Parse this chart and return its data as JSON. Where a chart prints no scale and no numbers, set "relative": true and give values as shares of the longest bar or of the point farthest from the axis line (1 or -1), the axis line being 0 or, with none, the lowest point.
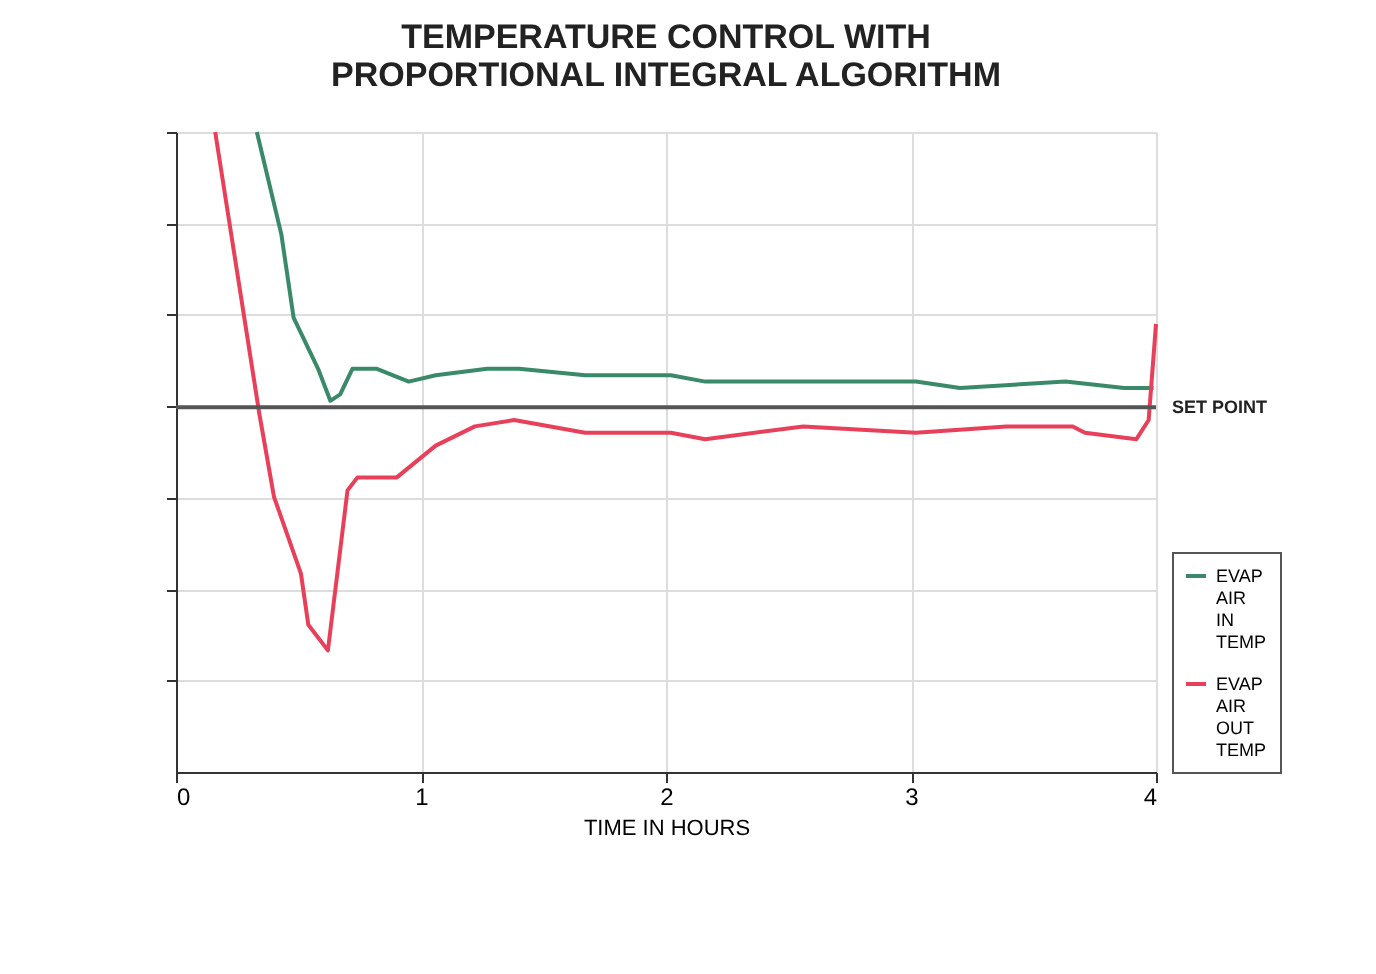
{
  "chart_data": {
    "type": "line",
    "title": "TEMPERATURE CONTROL WITH\nPROPORTIONAL INTEGRAL ALGORITHM",
    "xlabel": "TIME IN HOURS",
    "relative": true,
    "xlim": [
      0,
      4
    ],
    "xticks": [
      0,
      1,
      2,
      3,
      4
    ],
    "grid": true,
    "legend": "bottom right",
    "marker": "none",
    "line_style": "solid",
    "ref_lines": [
      {
        "axis": "y",
        "value": 0.57,
        "label": "SET POINT",
        "color": "#555555"
      }
    ],
    "series": [
      {
        "name": "EVAP AIR IN TEMP",
        "color": "#3a8a6a",
        "x": [
          0.33,
          0.43,
          0.48,
          0.58,
          0.63,
          0.67,
          0.72,
          0.82,
          0.95,
          1.06,
          1.27,
          1.4,
          1.67,
          2.02,
          2.16,
          2.56,
          3.02,
          3.2,
          3.63,
          3.87,
          3.99
        ],
        "values": [
          1,
          0.84,
          0.71,
          0.63,
          0.58,
          0.59,
          0.63,
          0.63,
          0.61,
          0.62,
          0.63,
          0.63,
          0.62,
          0.62,
          0.61,
          0.61,
          0.61,
          0.6,
          0.61,
          0.6,
          0.6
        ]
      },
      {
        "name": "EVAP AIR OUT TEMP",
        "color": "#e8405a",
        "x": [
          0.16,
          0.34,
          0.4,
          0.51,
          0.54,
          0.62,
          0.7,
          0.74,
          0.9,
          1.06,
          1.22,
          1.38,
          1.67,
          2.02,
          2.16,
          2.56,
          3.02,
          3.39,
          3.66,
          3.71,
          3.92,
          3.97,
          4.0
        ],
        "values": [
          1,
          0.56,
          0.43,
          0.31,
          0.23,
          0.19,
          0.44,
          0.46,
          0.46,
          0.51,
          0.54,
          0.55,
          0.53,
          0.53,
          0.52,
          0.54,
          0.53,
          0.54,
          0.54,
          0.53,
          0.52,
          0.55,
          0.7
        ]
      }
    ]
  }
}
